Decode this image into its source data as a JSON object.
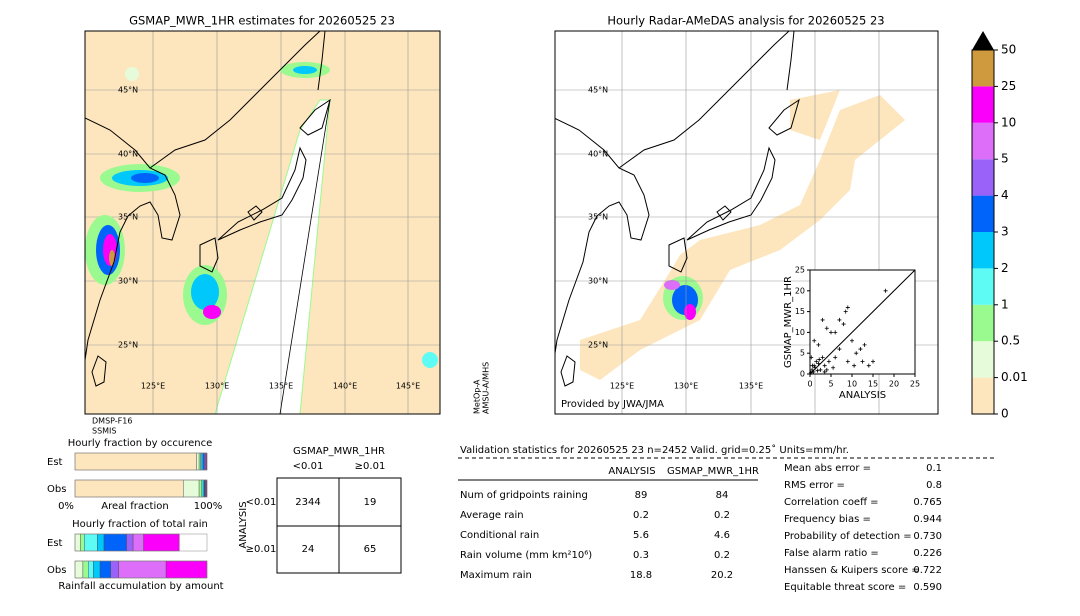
{
  "left_map": {
    "title": "GSMAP_MWR_1HR estimates for 20260525 23",
    "lat_labels": [
      "45°N",
      "40°N",
      "35°N",
      "30°N",
      "25°N"
    ],
    "lon_labels": [
      "125°E",
      "130°E",
      "135°E",
      "140°E",
      "145°E"
    ],
    "sensor_bottom": [
      "DMSP-F16",
      "SSMIS"
    ],
    "sensor_right": [
      "MetOp-A",
      "AMSU-A/MHS"
    ]
  },
  "right_map": {
    "title": "Hourly Radar-AMeDAS analysis for 20260525 23",
    "lat_labels": [
      "45°N",
      "40°N",
      "35°N",
      "30°N",
      "25°N"
    ],
    "lon_labels": [
      "125°E",
      "130°E",
      "135°E"
    ],
    "credit": "Provided by JWA/JMA"
  },
  "scatter": {
    "type": "scatter",
    "xlabel": "ANALYSIS",
    "ylabel": "GSMAP_MWR_1HR",
    "xlim": [
      0,
      25
    ],
    "ylim": [
      0,
      25
    ],
    "xticks": [
      0,
      5,
      10,
      15,
      20,
      25
    ],
    "yticks": [
      0,
      5,
      10,
      15,
      20,
      25
    ],
    "x": [
      0.2,
      0.5,
      0.8,
      1,
      1.2,
      1.5,
      2,
      2.5,
      3,
      0.3,
      0.6,
      1.8,
      2.2,
      3.5,
      4,
      4.5,
      5,
      5.5,
      6,
      7,
      8,
      8.5,
      9,
      10,
      10.5,
      11,
      12,
      12.5,
      13,
      14,
      15,
      18,
      1,
      2,
      3,
      4,
      6,
      7,
      9,
      3.5
    ],
    "y": [
      0.3,
      1,
      0.5,
      2,
      1.5,
      3,
      2.5,
      1,
      4,
      4,
      2,
      0.8,
      3.5,
      2,
      1,
      3,
      10,
      1.5,
      10,
      13,
      12,
      15,
      16,
      8,
      2,
      5,
      6,
      3,
      7,
      2,
      3,
      20,
      8,
      7,
      13,
      11,
      4,
      6,
      3,
      0.5
    ]
  },
  "colorbar": {
    "ticks": [
      0,
      0.01,
      0.5,
      1,
      2,
      3,
      4,
      5,
      10,
      25,
      50
    ],
    "colors": [
      "#fde6bd",
      "#e6fbd9",
      "#9afa8f",
      "#5efbf5",
      "#00c8fa",
      "#0064fa",
      "#9a62f9",
      "#dc6ef9",
      "#fa00fa",
      "#cf9a3d"
    ]
  },
  "fraction_occurrence": {
    "title": "Hourly fraction by occurence",
    "xlabels": [
      "0%",
      "Areal fraction",
      "100%"
    ],
    "colors": [
      "#fde6bd",
      "#e6fbd9",
      "#9afa8f",
      "#5efbf5",
      "#00c8fa",
      "#0064fa",
      "#9a62f9",
      "#dc6ef9",
      "#fa00fa"
    ],
    "rows": [
      {
        "label": "Est",
        "segments": [
          0.92,
          0.02,
          0.01,
          0.01,
          0.01,
          0.01,
          0.01,
          0.005,
          0.005
        ]
      },
      {
        "label": "Obs",
        "segments": [
          0.82,
          0.12,
          0.02,
          0.01,
          0.01,
          0.005,
          0.005,
          0.005,
          0.005
        ]
      }
    ]
  },
  "fraction_total": {
    "title": "Hourly fraction of total rain",
    "footer": "Rainfall accumulation by amount",
    "colors": [
      "#fde6bd",
      "#e6fbd9",
      "#9afa8f",
      "#5efbf5",
      "#00c8fa",
      "#0064fa",
      "#9a62f9",
      "#dc6ef9",
      "#fa00fa"
    ],
    "rows": [
      {
        "label": "Est",
        "segments": [
          0,
          0.04,
          0.03,
          0.1,
          0.05,
          0.17,
          0.05,
          0.08,
          0.27
        ]
      },
      {
        "label": "Obs",
        "segments": [
          0,
          0.06,
          0.04,
          0.04,
          0.05,
          0.08,
          0.06,
          0.36,
          0.31
        ]
      }
    ]
  },
  "contingency": {
    "title": "GSMAP_MWR_1HR",
    "columns": [
      "<0.01",
      "≥0.01"
    ],
    "row_title": "ANALYSIS",
    "rows": [
      "<0.01",
      "≥0.01"
    ],
    "cells": [
      [
        2344,
        19
      ],
      [
        24,
        65
      ]
    ]
  },
  "validation": {
    "header": "Validation statistics for 20260525 23  n=2452 Valid. grid=0.25˚ Units=mm/hr.",
    "columns": [
      "ANALYSIS",
      "GSMAP_MWR_1HR"
    ],
    "rows": [
      {
        "label": "Num of gridpoints raining",
        "values": [
          89,
          84
        ]
      },
      {
        "label": "Average rain",
        "values": [
          0.2,
          0.2
        ]
      },
      {
        "label": "Conditional rain",
        "values": [
          5.6,
          4.6
        ]
      },
      {
        "label": "Rain volume (mm km²10⁶)",
        "values": [
          0.3,
          0.2
        ]
      },
      {
        "label": "Maximum rain",
        "values": [
          18.8,
          20.2
        ]
      }
    ],
    "scores": [
      {
        "label": "Mean abs error =",
        "value": "0.1"
      },
      {
        "label": "RMS error =",
        "value": "0.8"
      },
      {
        "label": "Correlation coeff =",
        "value": "0.765"
      },
      {
        "label": "Frequency bias =",
        "value": "0.944"
      },
      {
        "label": "Probability of detection =",
        "value": "0.730"
      },
      {
        "label": "False alarm ratio =",
        "value": "0.226"
      },
      {
        "label": "Hanssen & Kuipers score =",
        "value": "0.722"
      },
      {
        "label": "Equitable threat score =",
        "value": "0.590"
      }
    ]
  }
}
